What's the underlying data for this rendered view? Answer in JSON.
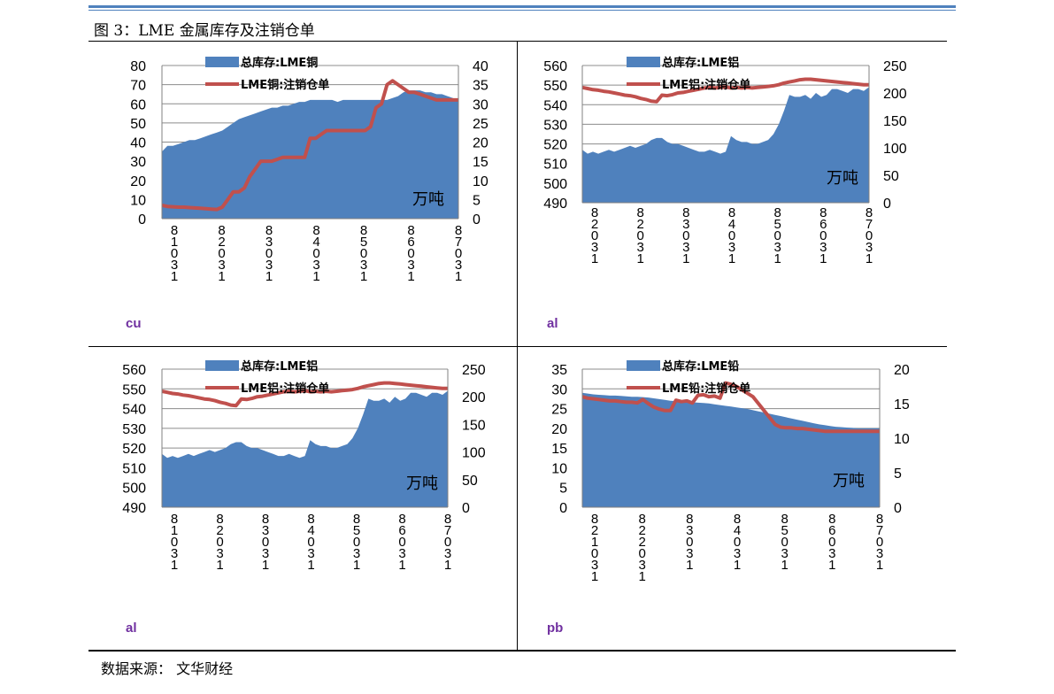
{
  "figure_title": "图 3：LME 金属库存及注销仓单",
  "source": "数据来源： 文华财经",
  "colors": {
    "area": "#4f81bd",
    "line": "#c0504d",
    "metal_label": "#7030a0"
  },
  "chart_data": [
    {
      "type": "area",
      "metal": "cu",
      "unit": "万吨",
      "x_ticks": [
        "8/1/031",
        "8/2/031",
        "8/3/031",
        "8/4/031",
        "8/5/031",
        "8/6/031",
        "8/7/031"
      ],
      "left_axis": {
        "ylim": [
          0,
          80
        ],
        "ticks": [
          "0",
          "10",
          "20",
          "30",
          "40",
          "50",
          "60",
          "70",
          "80"
        ]
      },
      "right_axis": {
        "ylim": [
          0,
          40
        ],
        "ticks": [
          "0",
          "5",
          "10",
          "15",
          "20",
          "25",
          "30",
          "35",
          "40"
        ]
      },
      "series": [
        {
          "name": "总库存:LME铜",
          "type": "area",
          "axis": "left",
          "values": [
            35,
            38,
            38,
            39,
            40,
            41,
            41,
            42,
            43,
            44,
            45,
            46,
            48,
            50,
            52,
            53,
            54,
            55,
            56,
            57,
            58,
            58,
            59,
            59,
            60,
            61,
            61,
            62,
            62,
            62,
            62,
            62,
            61,
            62,
            62,
            62,
            62,
            62,
            62,
            62,
            62,
            62,
            63,
            64,
            66,
            67,
            67,
            67,
            66,
            66,
            65,
            65,
            64,
            63,
            62
          ]
        },
        {
          "name": "LME铜:注销仓单",
          "type": "line",
          "axis": "right",
          "values": [
            3.5,
            3.2,
            3.1,
            3.0,
            3.0,
            2.9,
            2.8,
            2.7,
            2.6,
            2.5,
            2.4,
            3.0,
            5,
            7,
            7,
            8,
            11,
            13,
            15,
            15,
            15,
            15.5,
            16,
            16,
            16,
            16,
            16,
            21,
            21,
            22,
            23,
            23,
            23,
            23,
            23,
            23,
            23,
            23,
            24,
            29,
            30,
            35,
            36,
            35,
            34,
            33,
            33,
            32.5,
            32,
            31.5,
            31,
            31,
            31,
            31,
            31
          ]
        }
      ]
    },
    {
      "type": "area",
      "metal": "al",
      "unit": "万吨",
      "x_ticks": [
        "8/2/031",
        "8/2/031",
        "8/3/031",
        "8/4/031",
        "8/5/031",
        "8/6/031",
        "8/7/031"
      ],
      "left_axis": {
        "ylim": [
          490,
          560
        ],
        "ticks": [
          "490",
          "500",
          "510",
          "520",
          "530",
          "540",
          "550",
          "560"
        ]
      },
      "right_axis": {
        "ylim": [
          0,
          250
        ],
        "ticks": [
          "0",
          "50",
          "100",
          "150",
          "200",
          "250"
        ]
      },
      "series": [
        {
          "name": "总库存:LME铝",
          "type": "area",
          "axis": "left",
          "values": [
            517,
            515,
            516,
            515,
            516,
            517,
            516,
            517,
            518,
            519,
            518,
            519,
            520,
            522,
            523,
            523,
            521,
            520,
            520,
            519,
            518,
            517,
            516,
            516,
            517,
            516,
            515,
            516,
            524,
            522,
            521,
            521,
            520,
            520,
            521,
            522,
            525,
            530,
            537,
            545,
            544,
            544,
            545,
            543,
            546,
            544,
            545,
            548,
            548,
            547,
            546,
            548,
            548,
            547,
            549
          ]
        },
        {
          "name": "LME铝:注销仓单",
          "type": "line",
          "axis": "right",
          "values": [
            210,
            208,
            206,
            205,
            203,
            202,
            200,
            198,
            196,
            195,
            193,
            190,
            188,
            185,
            184,
            196,
            195,
            197,
            200,
            201,
            203,
            205,
            207,
            209,
            210,
            209,
            210,
            211,
            209,
            210,
            209,
            210,
            209,
            210,
            211,
            212,
            213,
            215,
            218,
            220,
            222,
            224,
            225,
            225,
            224,
            223,
            222,
            221,
            220,
            219,
            218,
            217,
            216,
            215,
            215
          ]
        }
      ]
    },
    {
      "type": "area",
      "metal": "al",
      "unit": "万吨",
      "x_ticks": [
        "8/1/031",
        "8/2/031",
        "8/3/031",
        "8/4/031",
        "8/5/031",
        "8/6/031",
        "8/7/031"
      ],
      "left_axis": {
        "ylim": [
          490,
          560
        ],
        "ticks": [
          "490",
          "500",
          "510",
          "520",
          "530",
          "540",
          "550",
          "560"
        ]
      },
      "right_axis": {
        "ylim": [
          0,
          250
        ],
        "ticks": [
          "0",
          "50",
          "100",
          "150",
          "200",
          "250"
        ]
      },
      "series": [
        {
          "name": "总库存:LME铝",
          "type": "area",
          "axis": "left",
          "values": [
            517,
            515,
            516,
            515,
            516,
            517,
            516,
            517,
            518,
            519,
            518,
            519,
            520,
            522,
            523,
            523,
            521,
            520,
            520,
            519,
            518,
            517,
            516,
            516,
            517,
            516,
            515,
            516,
            524,
            522,
            521,
            521,
            520,
            520,
            521,
            522,
            525,
            530,
            537,
            545,
            544,
            544,
            545,
            543,
            546,
            544,
            545,
            548,
            548,
            547,
            546,
            548,
            548,
            547,
            549
          ]
        },
        {
          "name": "LME铝:注销仓单",
          "type": "line",
          "axis": "right",
          "values": [
            210,
            208,
            206,
            205,
            203,
            202,
            200,
            198,
            196,
            195,
            193,
            190,
            188,
            185,
            184,
            196,
            195,
            197,
            200,
            201,
            203,
            205,
            207,
            209,
            210,
            209,
            210,
            211,
            209,
            210,
            209,
            210,
            209,
            210,
            211,
            212,
            213,
            215,
            218,
            220,
            222,
            224,
            225,
            225,
            224,
            223,
            222,
            221,
            220,
            219,
            218,
            217,
            216,
            215,
            215
          ]
        }
      ]
    },
    {
      "type": "area",
      "metal": "pb",
      "unit": "万吨",
      "x_ticks": [
        "8/2/1031",
        "8/2/2031",
        "8/3/031",
        "8/4/031",
        "8/5/031",
        "8/6/031",
        "8/7/031"
      ],
      "left_axis": {
        "ylim": [
          0,
          35
        ],
        "ticks": [
          "0",
          "5",
          "10",
          "15",
          "20",
          "25",
          "30",
          "35"
        ]
      },
      "right_axis": {
        "ylim": [
          0,
          20
        ],
        "ticks": [
          "0",
          "5",
          "10",
          "15",
          "20"
        ]
      },
      "series": [
        {
          "name": "总库存:LME铅",
          "type": "area",
          "axis": "left",
          "values": [
            29,
            28.8,
            28.6,
            28.5,
            28.4,
            28.3,
            28.3,
            28.2,
            28.1,
            28,
            28,
            27.9,
            27.8,
            27.6,
            27.4,
            27.2,
            27,
            26.9,
            26.8,
            26.7,
            26.6,
            26.5,
            26.4,
            26.3,
            26.1,
            25.9,
            25.7,
            25.5,
            25.3,
            25.1,
            24.9,
            24.6,
            24.3,
            24,
            23.7,
            23.4,
            23.1,
            22.8,
            22.5,
            22.2,
            21.9,
            21.6,
            21.3,
            21,
            20.8,
            20.6,
            20.4,
            20.3,
            20.2,
            20.1,
            20,
            20,
            20,
            20,
            20
          ]
        },
        {
          "name": "LME铅:注销仓单",
          "type": "line",
          "axis": "right",
          "values": [
            16,
            15.8,
            15.7,
            15.6,
            15.5,
            15.4,
            15.4,
            15.3,
            15.2,
            15.2,
            15.1,
            15.6,
            15,
            14.5,
            14.2,
            14.0,
            14.0,
            15.5,
            15.3,
            15.4,
            15.1,
            16.2,
            16.3,
            16.0,
            16.1,
            15.8,
            18,
            17.8,
            17.5,
            17,
            16.5,
            16,
            15,
            14,
            13,
            12,
            11.6,
            11.5,
            11.5,
            11.4,
            11.4,
            11.3,
            11.2,
            11.1,
            11,
            11,
            11,
            11,
            11,
            11,
            11,
            11,
            11,
            11,
            11
          ]
        }
      ]
    }
  ]
}
